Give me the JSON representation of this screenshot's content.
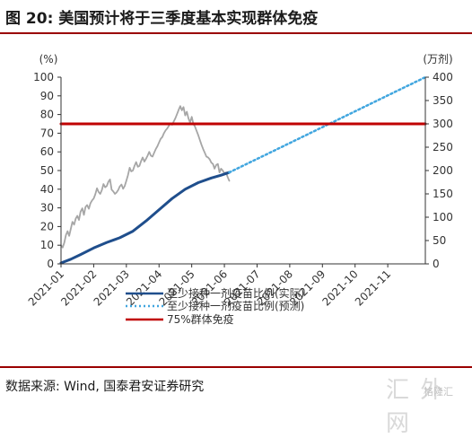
{
  "title": "图 20: 美国预计将于三季度基本实现群体免疫",
  "source": "数据来源: Wind, 国泰君安证券研究",
  "watermark": {
    "text": "汇 外网",
    "badge": "格隆汇"
  },
  "chart_data": {
    "type": "line",
    "left_axis": {
      "unit": "(%)",
      "ylim": [
        0,
        100
      ],
      "ticks": [
        0,
        10,
        20,
        30,
        40,
        50,
        60,
        70,
        80,
        90,
        100
      ]
    },
    "right_axis": {
      "unit": "(万剂)",
      "ylim": [
        0,
        400
      ],
      "ticks": [
        0,
        50,
        100,
        150,
        200,
        250,
        300,
        350,
        400
      ]
    },
    "x_ticks": [
      "2021-01",
      "2021-02",
      "2021-03",
      "2021-04",
      "2021-05",
      "2021-06",
      "2021-07",
      "2021-08",
      "2021-09",
      "2021-10",
      "2021-11"
    ],
    "x_range": [
      0,
      11.15
    ],
    "grid": false,
    "legend_position": "bottom",
    "series": [
      {
        "name": "至少接种一剂疫苗比例(实际)",
        "axis": "left",
        "color": "#1f4e8c",
        "style": "solid",
        "x": [
          0,
          0.3,
          0.6,
          1.0,
          1.4,
          1.8,
          2.2,
          2.6,
          3.0,
          3.4,
          3.8,
          4.2,
          4.6,
          4.9,
          5.15
        ],
        "y": [
          0.5,
          2.5,
          5,
          8.5,
          11.5,
          14,
          17.5,
          23,
          29,
          35,
          40,
          43.5,
          46,
          47.5,
          49
        ]
      },
      {
        "name": "至少接种一剂疫苗比例(预测)",
        "axis": "left",
        "color": "#41a6df",
        "style": "dotted",
        "x": [
          5.15,
          11.15
        ],
        "y": [
          49,
          100
        ]
      },
      {
        "name": "75%群体免疫",
        "axis": "left",
        "color": "#c00000",
        "style": "solid",
        "x": [
          0,
          11.15
        ],
        "y": [
          75,
          75
        ]
      },
      {
        "name": "",
        "axis": "right",
        "color": "#a6a6a6",
        "style": "solid",
        "x": [
          0,
          0.05,
          0.1,
          0.15,
          0.2,
          0.25,
          0.3,
          0.35,
          0.4,
          0.45,
          0.5,
          0.55,
          0.6,
          0.65,
          0.7,
          0.75,
          0.8,
          0.85,
          0.9,
          0.95,
          1.0,
          1.05,
          1.1,
          1.15,
          1.2,
          1.25,
          1.3,
          1.35,
          1.4,
          1.45,
          1.5,
          1.55,
          1.6,
          1.65,
          1.7,
          1.75,
          1.8,
          1.85,
          1.9,
          1.95,
          2.0,
          2.05,
          2.1,
          2.15,
          2.2,
          2.25,
          2.3,
          2.35,
          2.4,
          2.45,
          2.5,
          2.55,
          2.6,
          2.65,
          2.7,
          2.75,
          2.8,
          2.85,
          2.9,
          2.95,
          3.0,
          3.05,
          3.1,
          3.15,
          3.2,
          3.25,
          3.3,
          3.35,
          3.4,
          3.45,
          3.5,
          3.55,
          3.6,
          3.65,
          3.7,
          3.75,
          3.8,
          3.85,
          3.9,
          3.95,
          4.0,
          4.05,
          4.1,
          4.15,
          4.2,
          4.25,
          4.3,
          4.35,
          4.4,
          4.45,
          4.5,
          4.55,
          4.6,
          4.65,
          4.7,
          4.75,
          4.8,
          4.85,
          4.9,
          4.95,
          5.0,
          5.05,
          5.1,
          5.15
        ],
        "y": [
          40,
          35,
          45,
          62,
          70,
          60,
          75,
          90,
          84,
          97,
          103,
          94,
          112,
          119,
          105,
          122,
          126,
          118,
          130,
          136,
          140,
          149,
          162,
          154,
          150,
          158,
          171,
          164,
          167,
          176,
          181,
          159,
          155,
          150,
          153,
          158,
          166,
          170,
          161,
          167,
          178,
          190,
          206,
          198,
          200,
          210,
          218,
          208,
          210,
          220,
          228,
          219,
          225,
          232,
          240,
          232,
          230,
          238,
          246,
          252,
          260,
          268,
          272,
          280,
          286,
          290,
          296,
          301,
          298,
          305,
          312,
          321,
          330,
          338,
          329,
          336,
          318,
          326,
          312,
          303,
          315,
          300,
          294,
          285,
          276,
          265,
          255,
          246,
          238,
          230,
          228,
          224,
          217,
          214,
          204,
          212,
          214,
          196,
          204,
          200,
          194,
          196,
          186,
          178
        ]
      }
    ]
  }
}
